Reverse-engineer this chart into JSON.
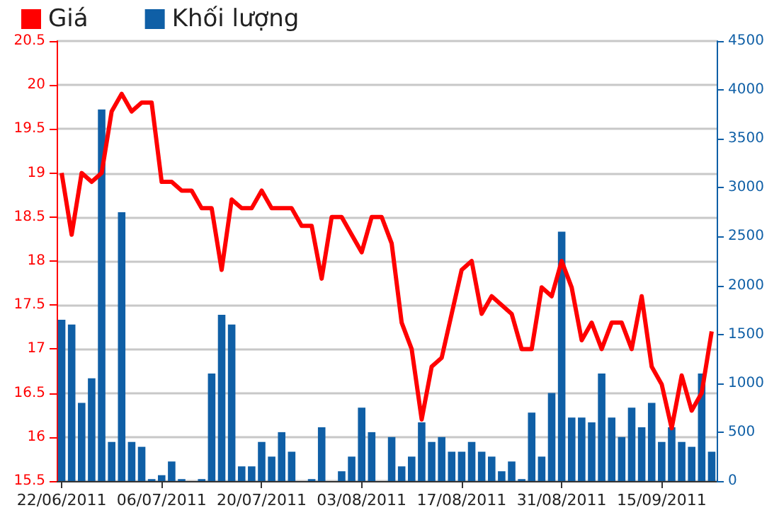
{
  "chart_data": {
    "type": "bar",
    "categories": [
      "22/06/2011",
      null,
      null,
      null,
      null,
      null,
      null,
      null,
      null,
      null,
      "06/07/2011",
      null,
      null,
      null,
      null,
      null,
      null,
      null,
      null,
      null,
      "20/07/2011",
      null,
      null,
      null,
      null,
      null,
      null,
      null,
      null,
      null,
      "03/08/2011",
      null,
      null,
      null,
      null,
      null,
      null,
      null,
      null,
      null,
      "17/08/2011",
      null,
      null,
      null,
      null,
      null,
      null,
      null,
      null,
      null,
      "31/08/2011",
      null,
      null,
      null,
      null,
      null,
      null,
      null,
      null,
      null,
      "15/09/2011",
      null,
      null,
      null,
      null,
      null
    ],
    "series": [
      {
        "name": "Giá",
        "type": "line",
        "color": "#ff0000",
        "values": [
          19.0,
          18.3,
          19.0,
          18.9,
          19.0,
          19.7,
          19.9,
          19.7,
          19.8,
          19.8,
          18.9,
          18.9,
          18.8,
          18.8,
          18.6,
          18.6,
          17.9,
          18.7,
          18.6,
          18.6,
          18.8,
          18.6,
          18.6,
          18.6,
          18.4,
          18.4,
          17.8,
          18.5,
          18.5,
          18.3,
          18.1,
          18.5,
          18.5,
          18.2,
          17.3,
          17.0,
          16.2,
          16.8,
          16.9,
          17.4,
          17.9,
          18.0,
          17.4,
          17.6,
          17.5,
          17.4,
          17.0,
          17.0,
          17.7,
          17.6,
          18.0,
          17.7,
          17.1,
          17.3,
          17.0,
          17.3,
          17.3,
          17.0,
          17.6,
          16.8,
          16.6,
          16.1,
          16.7,
          16.3,
          16.5,
          17.2
        ]
      },
      {
        "name": "Khối lượng",
        "type": "bar",
        "axis": "y2",
        "color": "#0f5fa6",
        "values": [
          1650,
          1600,
          800,
          1050,
          3800,
          400,
          2750,
          400,
          350,
          20,
          60,
          200,
          20,
          0,
          20,
          1100,
          1700,
          1600,
          150,
          150,
          400,
          250,
          500,
          300,
          0,
          20,
          550,
          0,
          100,
          250,
          750,
          500,
          0,
          450,
          150,
          250,
          600,
          400,
          450,
          300,
          300,
          400,
          300,
          250,
          100,
          200,
          20,
          700,
          250,
          900,
          2550,
          650,
          650,
          600,
          1100,
          650,
          450,
          750,
          550,
          800,
          400,
          550,
          400,
          350,
          1100,
          300
        ]
      }
    ],
    "ylim": [
      15.5,
      20.5
    ],
    "yticks": [
      15.5,
      16,
      16.5,
      17,
      17.5,
      18,
      18.5,
      19,
      19.5,
      20,
      20.5
    ],
    "y2lim": [
      0,
      4500
    ],
    "y2ticks": [
      0,
      500,
      1000,
      1500,
      2000,
      2500,
      3000,
      3500,
      4000,
      4500
    ],
    "grid": "y",
    "legend": "top left",
    "marker": "none"
  }
}
